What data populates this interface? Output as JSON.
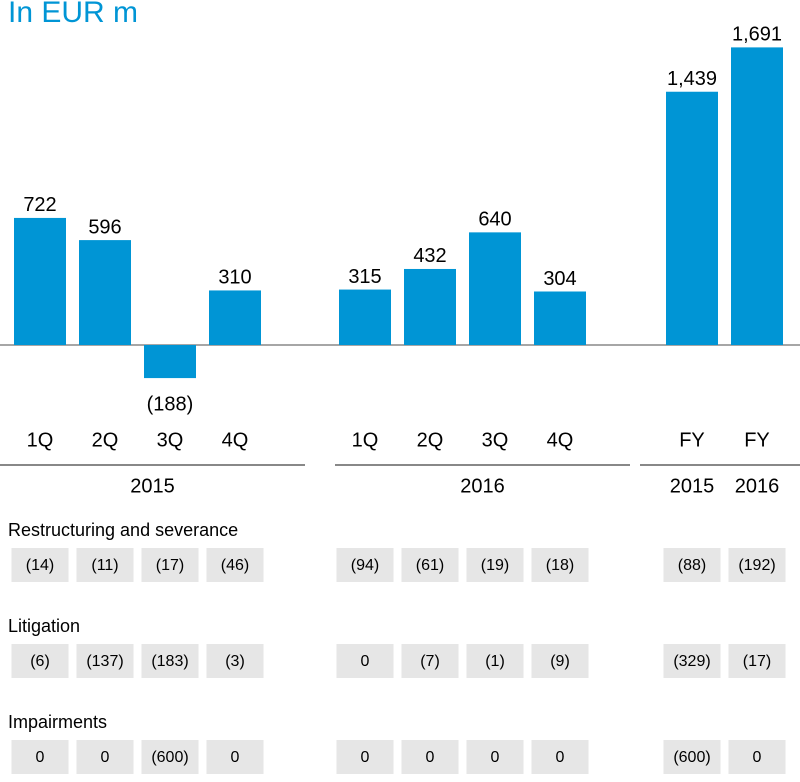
{
  "chart_data": {
    "type": "bar",
    "title": "In EUR m",
    "categories": [
      "1Q",
      "2Q",
      "3Q",
      "4Q",
      "1Q",
      "2Q",
      "3Q",
      "4Q",
      "FY",
      "FY"
    ],
    "values": [
      722,
      596,
      -188,
      310,
      315,
      432,
      640,
      304,
      1439,
      1691
    ],
    "value_labels": [
      "722",
      "596",
      "(188)",
      "310",
      "315",
      "432",
      "640",
      "304",
      "1,439",
      "1,691"
    ],
    "color": "#0095d5",
    "groups": [
      "2015",
      "2016"
    ],
    "fy_labels": [
      "2015",
      "2016"
    ]
  },
  "table": {
    "sections": [
      {
        "label": "Restructuring and severance",
        "cells": [
          "(14)",
          "(11)",
          "(17)",
          "(46)",
          "(94)",
          "(61)",
          "(19)",
          "(18)",
          "(88)",
          "(192)"
        ]
      },
      {
        "label": "Litigation",
        "cells": [
          "(6)",
          "(137)",
          "(183)",
          "(3)",
          "0",
          "(7)",
          "(1)",
          "(9)",
          "(329)",
          "(17)"
        ]
      },
      {
        "label": "Impairments",
        "cells": [
          "0",
          "0",
          "(600)",
          "0",
          "0",
          "0",
          "0",
          "0",
          "(600)",
          "0"
        ]
      }
    ]
  }
}
